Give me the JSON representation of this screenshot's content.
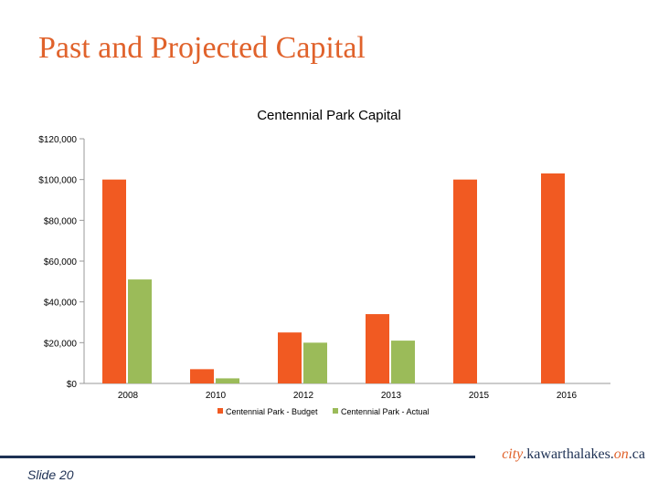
{
  "slide": {
    "title": "Past and Projected Capital",
    "number_label": "Slide 20"
  },
  "footer": {
    "url_part1": "city",
    "url_part2": ".kawarthalakes.",
    "url_part3": "on",
    "url_part4": ".ca"
  },
  "colors": {
    "accent": "#E0622B",
    "navy": "#1E3154",
    "budget": "#F15A22",
    "actual": "#9BBB59"
  },
  "chart_data": {
    "type": "bar",
    "title": "Centennial Park Capital",
    "categories": [
      "2008",
      "2010",
      "2012",
      "2013",
      "2015",
      "2016"
    ],
    "series": [
      {
        "name": "Centennial Park - Budget",
        "values": [
          100000,
          7000,
          25000,
          34000,
          100000,
          103000
        ]
      },
      {
        "name": "Centennial Park - Actual",
        "values": [
          51000,
          2500,
          20000,
          21000,
          0,
          0
        ]
      }
    ],
    "yticks": [
      "$0",
      "$20,000",
      "$40,000",
      "$60,000",
      "$80,000",
      "$100,000",
      "$120,000"
    ],
    "ylim": [
      0,
      120000
    ],
    "xlabel": "",
    "ylabel": "",
    "legend": "bottom"
  }
}
